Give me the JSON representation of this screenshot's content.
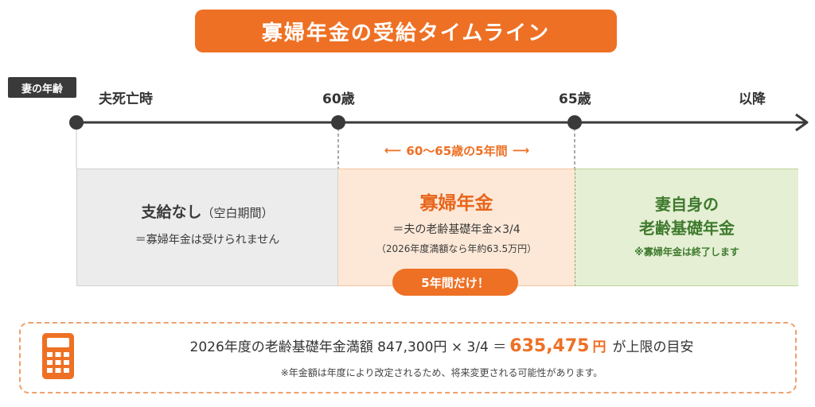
{
  "title": "寡婦年金の受給タイムライン",
  "age_badge": "妻の年齢",
  "timeline": {
    "labels": [
      "夫死亡時",
      "60歳",
      "65歳",
      "以降"
    ]
  },
  "range_label": {
    "left_arrow": "⟵",
    "text": "60～65歳の5年間",
    "right_arrow": "⟶"
  },
  "panels": {
    "none": {
      "heading": "支給なし",
      "heading_paren": "（空白期間）",
      "sub": "＝寡婦年金は受けられません"
    },
    "widow": {
      "heading": "寡婦年金",
      "line1": "＝夫の老齢基礎年金×3/4",
      "line2": "（2026年度満額なら年約63.5万円）",
      "badge": "5年間だけ！"
    },
    "own": {
      "heading_line1": "妻自身の",
      "heading_line2": "老齢基礎年金",
      "note": "※寡婦年金は終了します"
    }
  },
  "info": {
    "icon": "calculator-icon",
    "prefix": "2026年度の老齢基礎年金満額 847,300円 × 3/4 ＝",
    "amount": "635,475",
    "unit": "円",
    "suffix": "が上限の目安",
    "note": "※年金額は年度により改定されるため、将来変更される可能性があります。"
  },
  "colors": {
    "accent": "#ee7024",
    "timeline": "#3a3a3a",
    "none_bg": "#ececec",
    "widow_bg": "#fde8d7",
    "own_bg": "#e4efd3",
    "own_text": "#3f7a2e"
  }
}
